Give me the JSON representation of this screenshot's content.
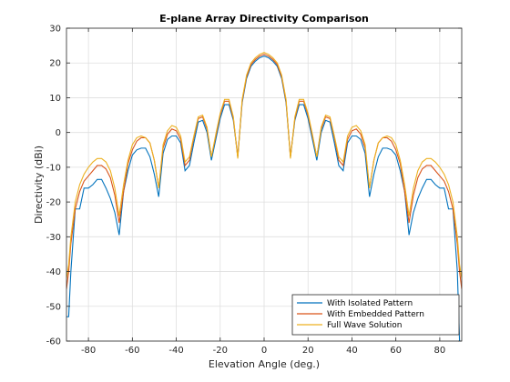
{
  "chart_data": {
    "type": "line",
    "title": "E-plane Array Directivity Comparison",
    "xlabel": "Elevation Angle (deg.)",
    "ylabel": "Directivity (dBi)",
    "xlim": [
      -90,
      90
    ],
    "ylim": [
      -60,
      30
    ],
    "xticks": [
      -80,
      -60,
      -40,
      -20,
      0,
      20,
      40,
      60,
      80
    ],
    "yticks": [
      -60,
      -50,
      -40,
      -30,
      -20,
      -10,
      0,
      10,
      20,
      30
    ],
    "grid": true,
    "legend_position": "bottom-right",
    "x": [
      -90,
      -89,
      -88,
      -86,
      -84,
      -82,
      -80,
      -78,
      -76,
      -74,
      -72,
      -70,
      -68,
      -66,
      -64,
      -62,
      -60,
      -58,
      -56,
      -54,
      -52,
      -50,
      -48,
      -46,
      -44,
      -42,
      -40,
      -38,
      -36,
      -34,
      -32,
      -30,
      -28,
      -26,
      -24,
      -22,
      -20,
      -18,
      -16,
      -14,
      -12,
      -10,
      -8,
      -6,
      -4,
      -2,
      0,
      2,
      4,
      6,
      8,
      10,
      12,
      14,
      16,
      18,
      20,
      22,
      24,
      26,
      28,
      30,
      32,
      34,
      36,
      38,
      40,
      42,
      44,
      46,
      48,
      50,
      52,
      54,
      56,
      58,
      60,
      62,
      64,
      66,
      68,
      70,
      72,
      74,
      76,
      78,
      80,
      82,
      84,
      86,
      88,
      89,
      90
    ],
    "series": [
      {
        "name": "With Isolated Pattern",
        "color": "#0072BD",
        "values": [
          -53,
          -53,
          -40,
          -22,
          -22,
          -16,
          -16,
          -15,
          -13.5,
          -13.5,
          -16,
          -19,
          -23,
          -29.5,
          -17,
          -11,
          -6.5,
          -5,
          -4.5,
          -4.5,
          -7,
          -12,
          -18.5,
          -6,
          -2,
          -1,
          -1,
          -3,
          -11,
          -9.5,
          -3,
          3,
          3.5,
          0,
          -8,
          -2,
          4,
          8,
          8,
          3.5,
          -7,
          8.5,
          15.5,
          19,
          20.5,
          21.5,
          22,
          21.5,
          20.5,
          19,
          15.5,
          8.5,
          -7,
          3.5,
          8,
          8,
          4,
          -2,
          -8,
          0,
          3.5,
          3,
          -3,
          -9.5,
          -11,
          -3,
          -1,
          -1,
          -2,
          -6,
          -18.5,
          -12,
          -7,
          -4.5,
          -4.5,
          -5,
          -6.5,
          -11,
          -17,
          -29.5,
          -23,
          -19,
          -16,
          -13.5,
          -13.5,
          -15,
          -16,
          -16,
          -22,
          -22,
          -40,
          -60,
          -60
        ]
      },
      {
        "name": "With Embedded Pattern",
        "color": "#D95319",
        "values": [
          -45,
          -40,
          -32,
          -22,
          -17,
          -14,
          -12.5,
          -11,
          -9.5,
          -9.5,
          -10.5,
          -13,
          -18,
          -26,
          -17,
          -9,
          -5,
          -2.5,
          -1.5,
          -1.5,
          -3,
          -8,
          -16,
          -4.5,
          -0.5,
          1,
          0.5,
          -2,
          -9.5,
          -8,
          -1.5,
          4,
          4.5,
          1,
          -7,
          -1,
          5,
          9,
          9,
          4,
          -7,
          9,
          16,
          19.5,
          21,
          22,
          22.5,
          22,
          21,
          19.5,
          16,
          9,
          -7,
          4,
          9,
          9,
          5,
          -1,
          -7,
          1,
          4.5,
          4,
          -1.5,
          -8,
          -9.5,
          -2,
          0.5,
          1,
          -0.5,
          -4.5,
          -16,
          -8,
          -3,
          -1.5,
          -1.5,
          -2.5,
          -5,
          -9,
          -17,
          -26,
          -18,
          -13,
          -10.5,
          -9.5,
          -9.5,
          -11,
          -12.5,
          -14,
          -17,
          -22,
          -32,
          -40,
          -45
        ]
      },
      {
        "name": "Full Wave Solution",
        "color": "#EDB120",
        "values": [
          -42,
          -38,
          -30,
          -20,
          -15,
          -12,
          -10,
          -8.5,
          -7.5,
          -7.5,
          -8.5,
          -11,
          -16,
          -24,
          -15,
          -8,
          -3.5,
          -1.5,
          -1,
          -1.5,
          -3,
          -8,
          -16,
          -3.5,
          0.5,
          2,
          1.5,
          -1,
          -8.5,
          -7,
          -1,
          4.5,
          5,
          1.5,
          -7,
          -0.5,
          5.5,
          9.5,
          9.5,
          4.5,
          -7.5,
          9.5,
          16.5,
          20,
          21.5,
          22.5,
          23,
          22.5,
          21.5,
          20,
          16.5,
          9.5,
          -7.5,
          4.5,
          9.5,
          9.5,
          5.5,
          -0.5,
          -7,
          1.5,
          5,
          4.5,
          -1,
          -7,
          -8.5,
          -1,
          1.5,
          2,
          0.5,
          -3.5,
          -16,
          -8,
          -3,
          -1.5,
          -1,
          -1.5,
          -3.5,
          -8,
          -15,
          -24,
          -16,
          -11,
          -8.5,
          -7.5,
          -7.5,
          -8.5,
          -10,
          -12,
          -15,
          -20,
          -30,
          -38,
          -42
        ]
      }
    ]
  }
}
